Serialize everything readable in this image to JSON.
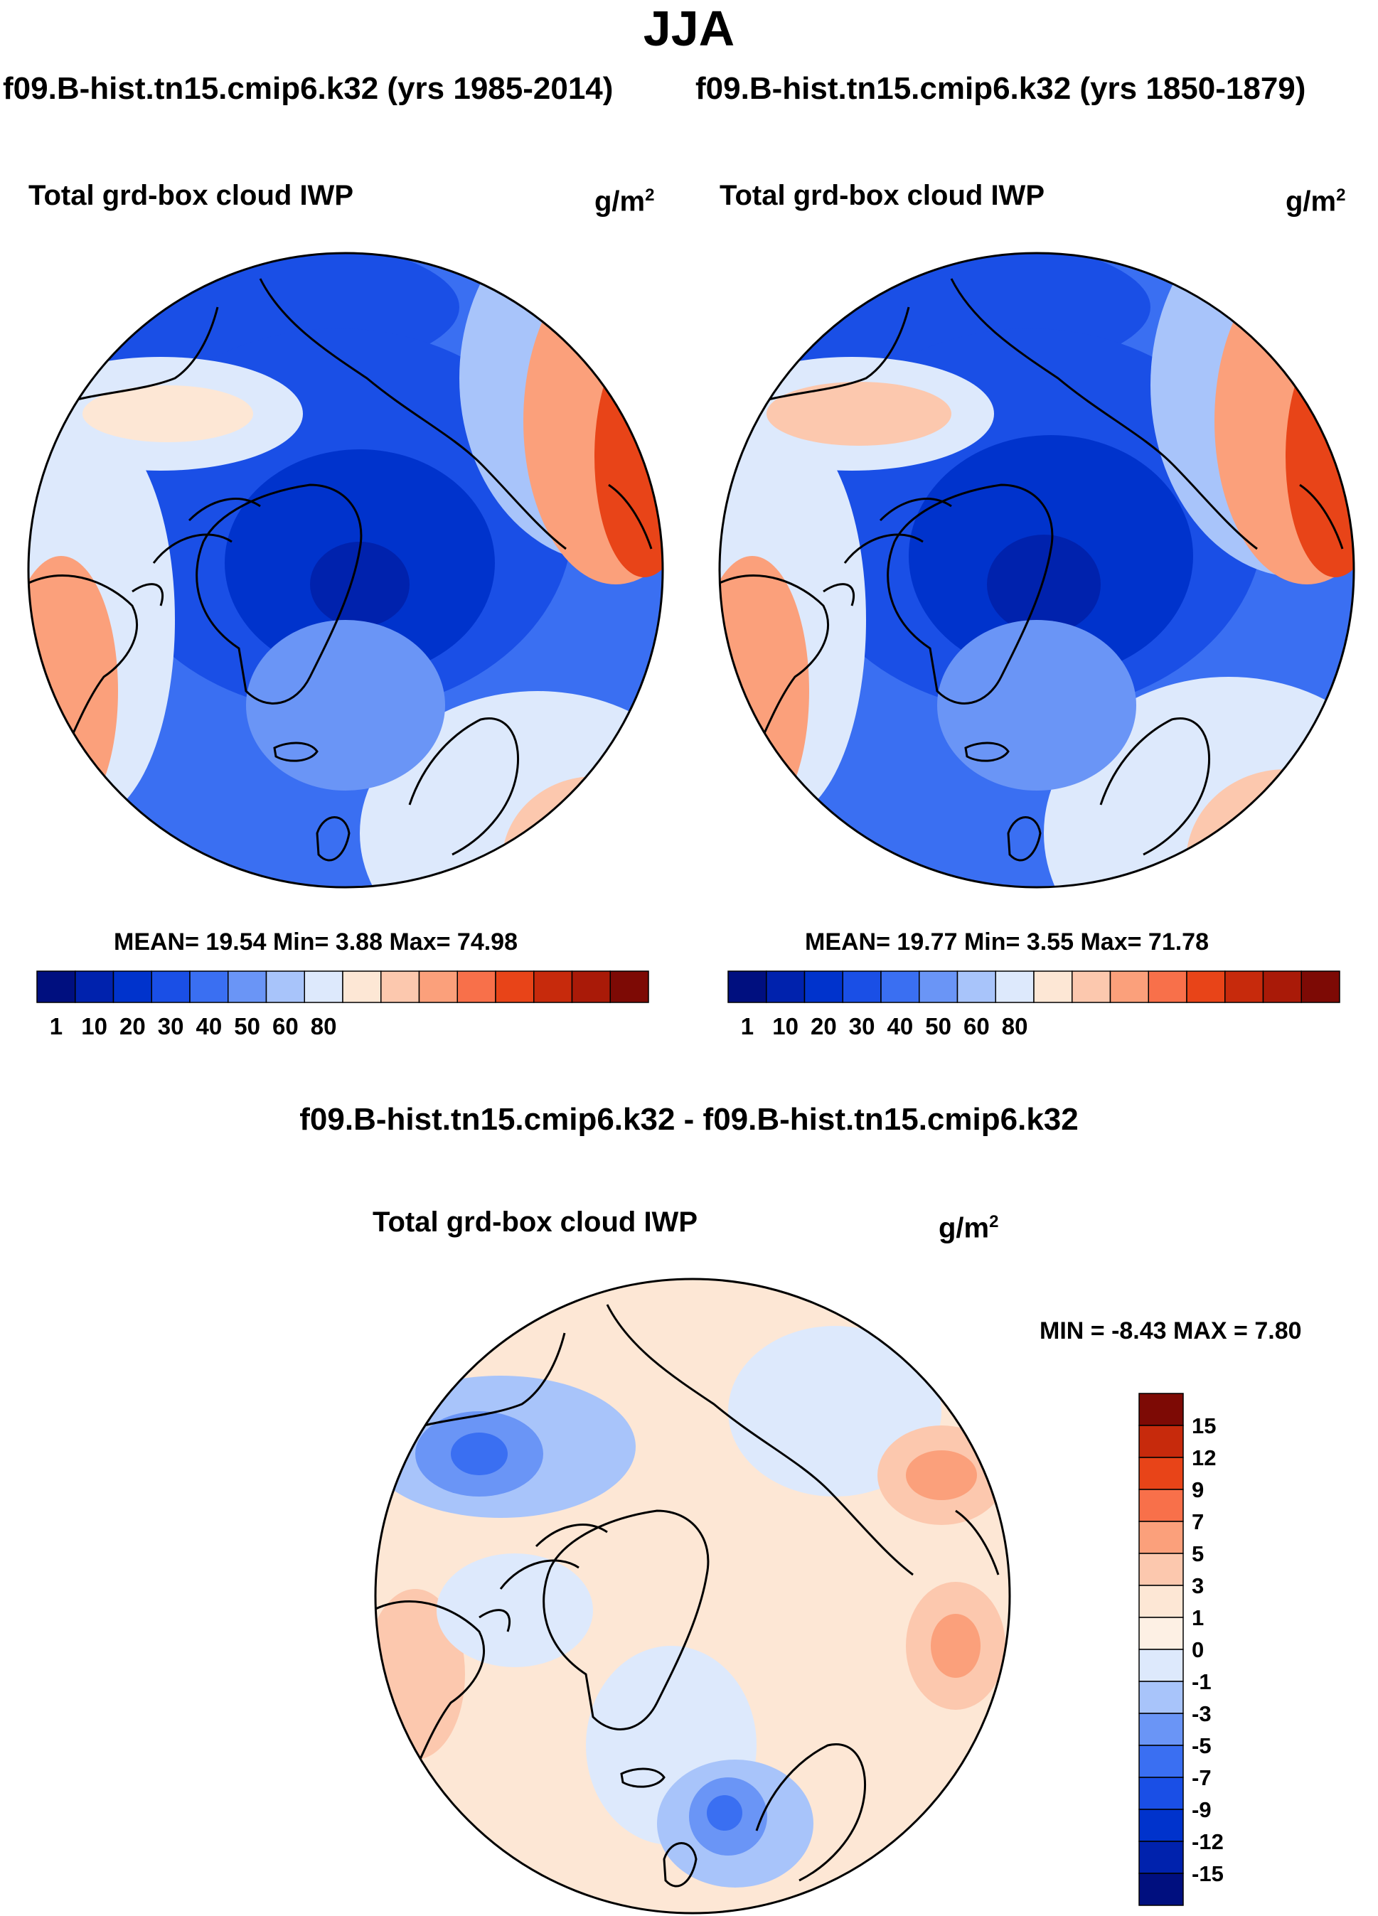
{
  "figure": {
    "season": "JJA",
    "case_label_left": "f09.B-hist.tn15.cmip6.k32 (yrs 1985-2014)",
    "case_label_right": "f09.B-hist.tn15.cmip6.k32 (yrs 1850-1879)",
    "difference_title": "f09.B-hist.tn15.cmip6.k32 - f09.B-hist.tn15.cmip6.k32"
  },
  "panels": {
    "left": {
      "title": "Total grd-box cloud IWP",
      "units_base": "g/m",
      "units_exp": "2",
      "mean_label": "MEAN=",
      "mean": "19.54",
      "min_label": "Min=",
      "min": "3.88",
      "max_label": "Max=",
      "max": "74.98"
    },
    "right": {
      "title": "Total grd-box cloud IWP",
      "units_base": "g/m",
      "units_exp": "2",
      "mean_label": "MEAN=",
      "mean": "19.77",
      "min_label": "Min=",
      "min": "3.55",
      "max_label": "Max=",
      "max": "71.78"
    },
    "diff": {
      "title": "Total grd-box cloud IWP",
      "units_base": "g/m",
      "units_exp": "2",
      "min_label": "MIN =",
      "min": "-8.43",
      "max_label": "MAX =",
      "max": "7.80"
    }
  },
  "chart_data": [
    {
      "type": "heatmap",
      "projection": "north-polar-stereographic",
      "title": "Total grd-box cloud IWP",
      "subtitle": "f09.B-hist.tn15.cmip6.k32 (yrs 1985-2014)",
      "units": "g/m2",
      "stats": {
        "mean": 19.54,
        "min": 3.88,
        "max": 74.98
      },
      "colorbar": {
        "orientation": "horizontal",
        "tick_labels": [
          "1",
          "10",
          "20",
          "30",
          "40",
          "50",
          "60",
          "80"
        ],
        "colors": [
          "#000f7f",
          "#0022ad",
          "#0033cc",
          "#1a4fe6",
          "#3a6ff2",
          "#6a95f6",
          "#a8c4fa",
          "#dde9fc",
          "#fde7d5",
          "#fcc8ae",
          "#fba07b",
          "#f8704a",
          "#e84418",
          "#c72a0c",
          "#a91a08",
          "#7d0a05"
        ]
      }
    },
    {
      "type": "heatmap",
      "projection": "north-polar-stereographic",
      "title": "Total grd-box cloud IWP",
      "subtitle": "f09.B-hist.tn15.cmip6.k32 (yrs 1850-1879)",
      "units": "g/m2",
      "stats": {
        "mean": 19.77,
        "min": 3.55,
        "max": 71.78
      },
      "colorbar": {
        "orientation": "horizontal",
        "tick_labels": [
          "1",
          "10",
          "20",
          "30",
          "40",
          "50",
          "60",
          "80"
        ],
        "colors": [
          "#000f7f",
          "#0022ad",
          "#0033cc",
          "#1a4fe6",
          "#3a6ff2",
          "#6a95f6",
          "#a8c4fa",
          "#dde9fc",
          "#fde7d5",
          "#fcc8ae",
          "#fba07b",
          "#f8704a",
          "#e84418",
          "#c72a0c",
          "#a91a08",
          "#7d0a05"
        ]
      }
    },
    {
      "type": "heatmap",
      "projection": "north-polar-stereographic",
      "title": "Total grd-box cloud IWP",
      "subtitle": "f09.B-hist.tn15.cmip6.k32 - f09.B-hist.tn15.cmip6.k32",
      "units": "g/m2",
      "stats": {
        "min": -8.43,
        "max": 7.8
      },
      "colorbar": {
        "orientation": "vertical",
        "tick_labels": [
          "15",
          "12",
          "9",
          "7",
          "5",
          "3",
          "1",
          "0",
          "-1",
          "-3",
          "-5",
          "-7",
          "-9",
          "-12",
          "-15"
        ],
        "colors": [
          "#7d0a05",
          "#c72a0c",
          "#e84418",
          "#f8704a",
          "#fba07b",
          "#fcc8ae",
          "#fde7d5",
          "#fdf0e4",
          "#dde9fc",
          "#a8c4fa",
          "#6a95f6",
          "#3a6ff2",
          "#1a4fe6",
          "#0033cc",
          "#0022ad",
          "#000f7f"
        ]
      }
    }
  ]
}
